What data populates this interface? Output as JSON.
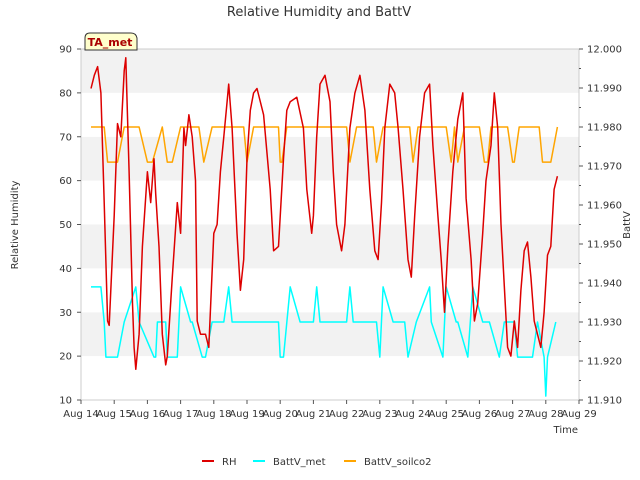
{
  "chart_data": {
    "type": "line",
    "title": "Relative Humidity and BattV",
    "xlabel": "Time",
    "ylabel": "Relative Humidity",
    "y2label": "BattV",
    "annotation": "TA_met",
    "grid": true,
    "legend_position": "bottom-center",
    "xlim": [
      14,
      29
    ],
    "ylim": [
      10,
      90
    ],
    "y2lim": [
      11.91,
      12.0
    ],
    "x_ticks": [
      "Aug 14",
      "Aug 15",
      "Aug 16",
      "Aug 17",
      "Aug 18",
      "Aug 19",
      "Aug 20",
      "Aug 21",
      "Aug 22",
      "Aug 23",
      "Aug 24",
      "Aug 25",
      "Aug 26",
      "Aug 27",
      "Aug 28",
      "Aug 29"
    ],
    "y_ticks": [
      "10",
      "20",
      "30",
      "40",
      "50",
      "60",
      "70",
      "80",
      "90"
    ],
    "y2_ticks": [
      "11.910",
      "11.920",
      "11.930",
      "11.940",
      "11.950",
      "11.960",
      "11.970",
      "11.980",
      "11.990",
      "12.000"
    ],
    "series": [
      {
        "name": "RH",
        "axis": "left",
        "color": "#dd0000",
        "x": [
          14.3,
          14.4,
          14.5,
          14.6,
          14.7,
          14.8,
          14.85,
          15.0,
          15.1,
          15.2,
          15.3,
          15.35,
          15.45,
          15.55,
          15.6,
          15.65,
          15.75,
          15.85,
          16.0,
          16.1,
          16.2,
          16.25,
          16.35,
          16.45,
          16.55,
          16.6,
          16.75,
          16.9,
          17.0,
          17.1,
          17.15,
          17.25,
          17.35,
          17.45,
          17.5,
          17.6,
          17.75,
          17.85,
          18.0,
          18.1,
          18.2,
          18.3,
          18.4,
          18.45,
          18.55,
          18.7,
          18.8,
          18.9,
          19.0,
          19.1,
          19.2,
          19.3,
          19.5,
          19.7,
          19.8,
          19.95,
          20.1,
          20.2,
          20.3,
          20.5,
          20.7,
          20.8,
          20.95,
          21.0,
          21.1,
          21.2,
          21.35,
          21.5,
          21.6,
          21.7,
          21.85,
          21.95,
          22.1,
          22.25,
          22.4,
          22.55,
          22.7,
          22.85,
          22.95,
          23.05,
          23.15,
          23.3,
          23.45,
          23.55,
          23.7,
          23.85,
          23.95,
          24.05,
          24.2,
          24.35,
          24.5,
          24.6,
          24.75,
          24.85,
          24.95,
          25.05,
          25.2,
          25.35,
          25.5,
          25.6,
          25.75,
          25.85,
          25.95,
          26.1,
          26.2,
          26.35,
          26.45,
          26.55,
          26.65,
          26.75,
          26.85,
          26.95,
          27.05,
          27.15,
          27.25,
          27.35,
          27.45,
          27.55,
          27.65,
          27.75,
          27.85,
          27.95,
          28.05,
          28.15,
          28.25,
          28.35
        ],
        "values": [
          81,
          84,
          86,
          80,
          55,
          28,
          27,
          52,
          73,
          70,
          85,
          88,
          62,
          32,
          22,
          17,
          25,
          45,
          62,
          55,
          65,
          57,
          45,
          25,
          18,
          20,
          38,
          55,
          48,
          72,
          68,
          75,
          70,
          60,
          28,
          25,
          25,
          22,
          48,
          50,
          62,
          70,
          78,
          82,
          72,
          48,
          35,
          42,
          65,
          76,
          80,
          81,
          75,
          58,
          44,
          45,
          65,
          76,
          78,
          79,
          72,
          58,
          48,
          52,
          70,
          82,
          84,
          78,
          62,
          50,
          44,
          50,
          72,
          80,
          84,
          76,
          58,
          44,
          42,
          55,
          72,
          82,
          80,
          72,
          58,
          42,
          38,
          52,
          70,
          80,
          82,
          68,
          52,
          42,
          30,
          45,
          62,
          74,
          80,
          56,
          42,
          28,
          32,
          48,
          60,
          68,
          80,
          72,
          50,
          36,
          22,
          20,
          28,
          22,
          35,
          44,
          46,
          38,
          28,
          25,
          22,
          30,
          43,
          45,
          58,
          61
        ]
      },
      {
        "name": "BattV_met",
        "axis": "right",
        "color": "#00ffff",
        "x": [
          14.3,
          14.6,
          14.7,
          14.75,
          15.1,
          15.3,
          15.65,
          15.75,
          16.2,
          16.25,
          16.3,
          16.55,
          16.6,
          16.9,
          17.0,
          17.3,
          17.35,
          17.65,
          17.75,
          17.95,
          18.0,
          18.3,
          18.45,
          18.55,
          19.0,
          19.1,
          19.2,
          19.3,
          19.95,
          20.0,
          20.1,
          20.3,
          20.6,
          20.7,
          21.0,
          21.1,
          21.2,
          21.4,
          22.0,
          22.1,
          22.2,
          22.4,
          22.9,
          23.0,
          23.1,
          23.4,
          23.75,
          23.85,
          24.1,
          24.5,
          24.55,
          24.9,
          25.0,
          25.3,
          25.35,
          25.65,
          25.8,
          26.1,
          26.2,
          26.3,
          26.6,
          26.75,
          27.05,
          27.15,
          27.6,
          27.75,
          27.95,
          28.0,
          28.05,
          28.3
        ],
        "values": [
          11.939,
          11.939,
          11.93,
          11.921,
          11.921,
          11.93,
          11.939,
          11.93,
          11.921,
          11.921,
          11.93,
          11.93,
          11.921,
          11.921,
          11.939,
          11.93,
          11.93,
          11.921,
          11.921,
          11.93,
          11.93,
          11.93,
          11.939,
          11.93,
          11.93,
          11.93,
          11.93,
          11.93,
          11.93,
          11.921,
          11.921,
          11.939,
          11.93,
          11.93,
          11.93,
          11.939,
          11.93,
          11.93,
          11.93,
          11.939,
          11.93,
          11.93,
          11.93,
          11.921,
          11.939,
          11.93,
          11.93,
          11.921,
          11.93,
          11.939,
          11.93,
          11.921,
          11.939,
          11.93,
          11.93,
          11.921,
          11.939,
          11.93,
          11.93,
          11.93,
          11.921,
          11.93,
          11.93,
          11.921,
          11.921,
          11.93,
          11.921,
          11.911,
          11.921,
          11.93
        ]
      },
      {
        "name": "BattV_soilco2",
        "axis": "right",
        "color": "#ffa500",
        "x": [
          14.3,
          14.7,
          14.8,
          15.1,
          15.3,
          15.5,
          15.75,
          16.0,
          16.15,
          16.45,
          16.6,
          16.75,
          17.0,
          17.25,
          17.4,
          17.55,
          17.7,
          17.95,
          18.0,
          18.1,
          18.45,
          18.55,
          18.9,
          19.0,
          19.2,
          19.4,
          19.95,
          20.0,
          20.05,
          20.2,
          20.6,
          21.0,
          21.05,
          21.2,
          21.35,
          21.6,
          22.0,
          22.1,
          22.3,
          22.55,
          22.8,
          22.9,
          23.1,
          23.25,
          23.5,
          23.9,
          24.0,
          24.15,
          24.3,
          24.6,
          25.0,
          25.15,
          25.25,
          25.35,
          25.55,
          25.75,
          26.0,
          26.15,
          26.25,
          26.35,
          26.6,
          26.85,
          27.0,
          27.05,
          27.2,
          27.5,
          27.8,
          27.9,
          28.0,
          28.15,
          28.35
        ],
        "values": [
          11.98,
          11.98,
          11.971,
          11.971,
          11.98,
          11.98,
          11.98,
          11.971,
          11.971,
          11.98,
          11.971,
          11.971,
          11.98,
          11.98,
          11.98,
          11.98,
          11.971,
          11.98,
          11.98,
          11.98,
          11.98,
          11.98,
          11.98,
          11.971,
          11.98,
          11.98,
          11.98,
          11.971,
          11.971,
          11.98,
          11.98,
          11.98,
          11.98,
          11.98,
          11.98,
          11.98,
          11.98,
          11.971,
          11.98,
          11.98,
          11.98,
          11.971,
          11.98,
          11.98,
          11.98,
          11.98,
          11.971,
          11.98,
          11.98,
          11.98,
          11.98,
          11.971,
          11.98,
          11.971,
          11.98,
          11.98,
          11.98,
          11.971,
          11.971,
          11.98,
          11.98,
          11.98,
          11.971,
          11.971,
          11.98,
          11.98,
          11.98,
          11.971,
          11.971,
          11.971,
          11.98
        ]
      }
    ]
  }
}
